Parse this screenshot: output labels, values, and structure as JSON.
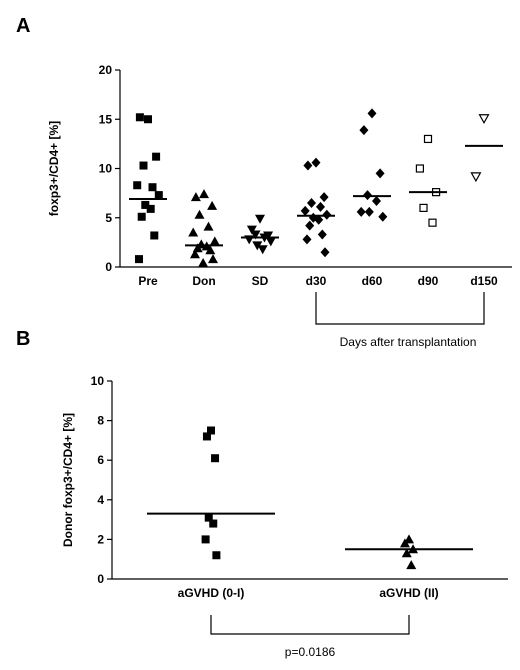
{
  "chart_data": [
    {
      "panel": "A",
      "type": "scatter",
      "ylabel": "foxp3+/CD4+ [%]",
      "ylim": [
        0,
        20
      ],
      "yticks": [
        0,
        5,
        10,
        15,
        20
      ],
      "categories": [
        "Pre",
        "Don",
        "SD",
        "d30",
        "d60",
        "d90",
        "d150"
      ],
      "markers": [
        "square",
        "triangle-up",
        "triangle-down",
        "diamond",
        "diamond",
        "square-open",
        "triangle-down-open"
      ],
      "medians": [
        6.9,
        2.2,
        3.0,
        5.2,
        7.2,
        7.6,
        12.3
      ],
      "points": [
        [
          15.0,
          15.2,
          11.2,
          10.3,
          8.1,
          8.3,
          7.3,
          6.3,
          5.9,
          5.1,
          3.2,
          0.8
        ],
        [
          7.4,
          7.1,
          6.2,
          5.3,
          4.1,
          3.5,
          2.6,
          2.3,
          2.1,
          1.9,
          1.7,
          1.3,
          0.8,
          0.4
        ],
        [
          4.9,
          3.8,
          3.2,
          3.3,
          3.0,
          2.8,
          2.6,
          2.2,
          1.8
        ],
        [
          10.6,
          10.3,
          7.1,
          6.5,
          6.1,
          5.7,
          5.3,
          5.0,
          4.8,
          4.2,
          3.3,
          2.8,
          1.5
        ],
        [
          15.6,
          13.9,
          9.5,
          7.3,
          6.7,
          5.6,
          5.1,
          5.6
        ],
        [
          13.0,
          10.0,
          7.6,
          6.0,
          4.5
        ],
        [
          15.1,
          9.2
        ]
      ],
      "bracket": {
        "from": "d30",
        "to": "d150",
        "label": "Days after transplantation"
      }
    },
    {
      "panel": "B",
      "type": "scatter",
      "ylabel": "Donor foxp3+/CD4+ [%]",
      "ylim": [
        0,
        10
      ],
      "yticks": [
        0,
        2,
        4,
        6,
        8,
        10
      ],
      "categories": [
        "aGVHD (0-I)",
        "aGVHD (II)"
      ],
      "markers": [
        "square",
        "triangle-up"
      ],
      "medians": [
        3.3,
        1.5
      ],
      "points": [
        [
          7.5,
          7.2,
          6.1,
          3.1,
          2.8,
          2.0,
          1.2
        ],
        [
          2.0,
          1.8,
          1.5,
          1.3,
          0.7
        ]
      ],
      "bracket": {
        "from": "aGVHD (0-I)",
        "to": "aGVHD (II)",
        "label": "p=0.0186"
      }
    }
  ],
  "panels": [
    "A",
    "B"
  ]
}
